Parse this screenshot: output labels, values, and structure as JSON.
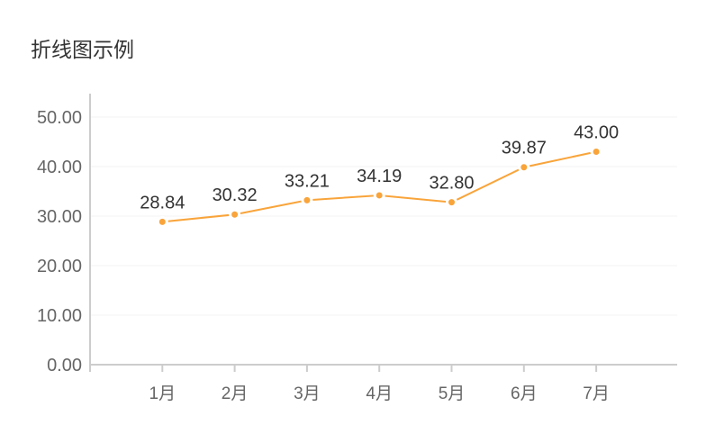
{
  "chart_data": {
    "type": "line",
    "title": "折线图示例",
    "categories": [
      "1月",
      "2月",
      "3月",
      "4月",
      "5月",
      "6月",
      "7月"
    ],
    "series": [
      {
        "values": [
          28.84,
          30.32,
          33.21,
          34.19,
          32.8,
          39.87,
          43.0
        ],
        "color": "#f9a43a"
      }
    ],
    "ylim": [
      0,
      50
    ],
    "yticks": [
      "0.00",
      "10.00",
      "20.00",
      "30.00",
      "40.00",
      "50.00"
    ],
    "data_labels": [
      "28.84",
      "30.32",
      "33.21",
      "34.19",
      "32.80",
      "39.87",
      "43.00"
    ],
    "grid": true,
    "legend": "none"
  }
}
